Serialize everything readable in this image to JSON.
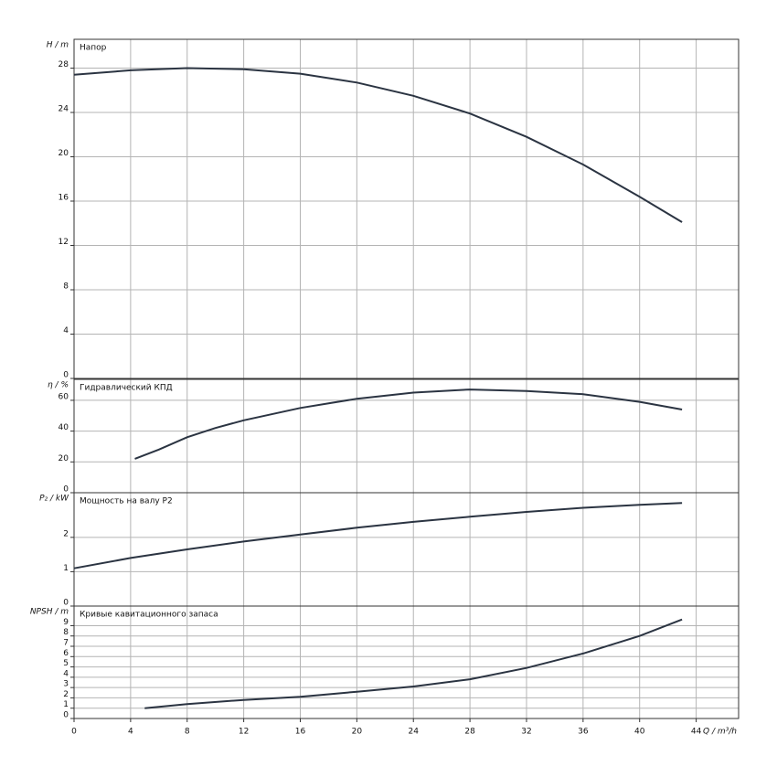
{
  "chart_data": [
    {
      "type": "line",
      "title": "Напор",
      "y_label": "H / m",
      "color": "#2b3442",
      "grid": true,
      "x": [
        0,
        4,
        8,
        12,
        16,
        20,
        24,
        28,
        32,
        36,
        40,
        43
      ],
      "values": [
        27.4,
        27.8,
        28.0,
        27.9,
        27.5,
        26.7,
        25.5,
        23.9,
        21.8,
        19.3,
        16.4,
        14.1
      ],
      "xlim": [
        0,
        47
      ],
      "xticks": [
        0,
        4,
        8,
        12,
        16,
        20,
        24,
        28,
        32,
        36,
        40,
        44
      ],
      "ylim": [
        0,
        30.6
      ],
      "yticks": [
        0,
        4,
        8,
        12,
        16,
        20,
        24,
        28
      ]
    },
    {
      "type": "line",
      "title": "Гидравлический КПД",
      "y_label": "η / %",
      "color": "#2b3442",
      "grid": true,
      "x": [
        4.3,
        6,
        8,
        10,
        12,
        16,
        20,
        24,
        28,
        32,
        36,
        40,
        43
      ],
      "values": [
        22,
        28,
        36,
        42,
        47,
        55,
        61,
        65,
        67,
        66,
        64,
        59,
        54
      ],
      "xlim": [
        0,
        47
      ],
      "xticks": [
        0,
        4,
        8,
        12,
        16,
        20,
        24,
        28,
        32,
        36,
        40,
        44
      ],
      "ylim": [
        0,
        73.6
      ],
      "yticks": [
        0,
        20,
        40,
        60
      ]
    },
    {
      "type": "line",
      "title": "Мощность на валу P2",
      "y_label": "P₂ / kW",
      "color": "#2b3442",
      "grid": true,
      "x": [
        0,
        4,
        8,
        12,
        16,
        20,
        24,
        28,
        32,
        36,
        40,
        43
      ],
      "values": [
        1.1,
        1.4,
        1.65,
        1.88,
        2.08,
        2.28,
        2.45,
        2.6,
        2.74,
        2.86,
        2.95,
        3.0
      ],
      "xlim": [
        0,
        47
      ],
      "xticks": [
        0,
        4,
        8,
        12,
        16,
        20,
        24,
        28,
        32,
        36,
        40,
        44
      ],
      "ylim": [
        0,
        3.3
      ],
      "yticks": [
        0,
        1,
        2
      ]
    },
    {
      "type": "line",
      "title": "Кривые кавитационного запаса",
      "y_label": "NPSH / m",
      "x_label": "Q / m³/h",
      "color": "#2b3442",
      "grid": true,
      "x": [
        5,
        8,
        12,
        16,
        20,
        24,
        28,
        32,
        36,
        40,
        43
      ],
      "values": [
        1.0,
        1.4,
        1.8,
        2.1,
        2.6,
        3.1,
        3.8,
        4.9,
        6.3,
        8.0,
        9.6
      ],
      "xlim": [
        0,
        47
      ],
      "xticks": [
        0,
        4,
        8,
        12,
        16,
        20,
        24,
        28,
        32,
        36,
        40,
        44
      ],
      "ylim": [
        0,
        10.9
      ],
      "yticks": [
        0,
        1,
        2,
        3,
        4,
        5,
        6,
        7,
        8,
        9
      ]
    }
  ]
}
